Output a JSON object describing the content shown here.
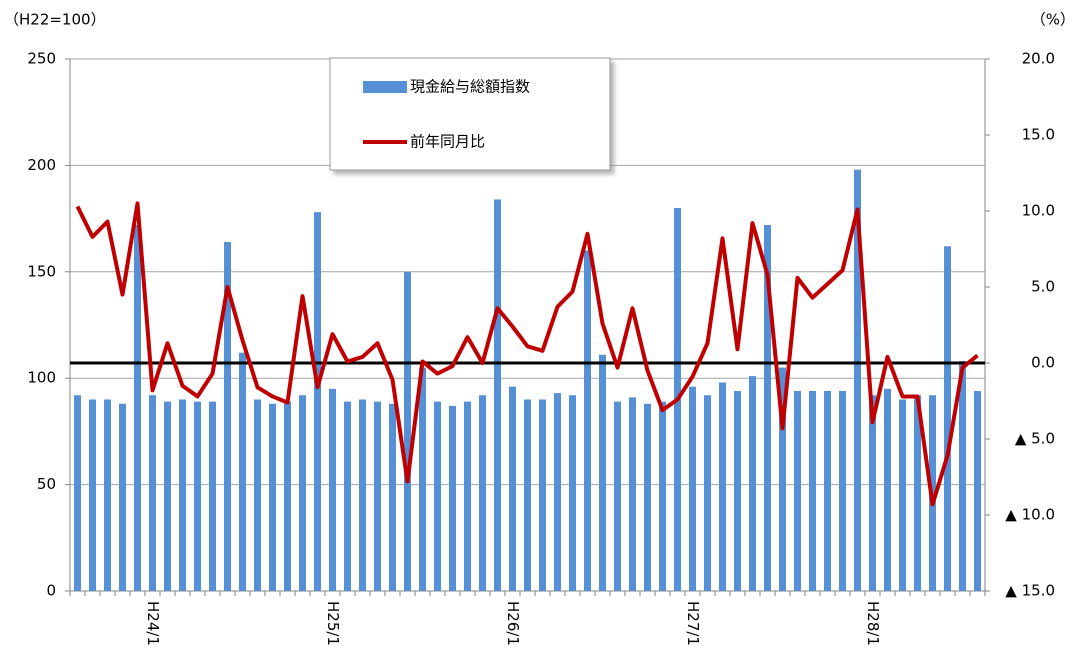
{
  "chart_data": {
    "type": "bar_line",
    "left_unit": "（H22=100）",
    "right_unit": "（%）",
    "categories": [
      null,
      null,
      null,
      null,
      null,
      "H24/1",
      null,
      null,
      null,
      null,
      null,
      null,
      null,
      null,
      null,
      null,
      null,
      "H25/1",
      null,
      null,
      null,
      null,
      null,
      null,
      null,
      null,
      null,
      null,
      null,
      "H26/1",
      null,
      null,
      null,
      null,
      null,
      null,
      null,
      null,
      null,
      null,
      null,
      "H27/1",
      null,
      null,
      null,
      null,
      null,
      null,
      null,
      null,
      null,
      null,
      null,
      "H28/1",
      null,
      null,
      null,
      null,
      null,
      null,
      null
    ],
    "series": [
      {
        "name": "現金給与総額指数",
        "type": "bar",
        "color": "#5590d6",
        "values": [
          92,
          90,
          90,
          88,
          172,
          92,
          89,
          90,
          89,
          89,
          164,
          112,
          90,
          88,
          89,
          92,
          178,
          95,
          89,
          90,
          89,
          88,
          150,
          105,
          89,
          87,
          89,
          92,
          184,
          96,
          90,
          90,
          93,
          92,
          160,
          111,
          89,
          91,
          88,
          89,
          180,
          96,
          92,
          98,
          94,
          101,
          172,
          105,
          94,
          94,
          94,
          94,
          198,
          92,
          95,
          90,
          92,
          92,
          162,
          108,
          94
        ]
      },
      {
        "name": "前年同月比",
        "type": "line",
        "axis": "y2",
        "color": "#c00000",
        "values": [
          10.3,
          8.3,
          9.3,
          4.5,
          10.5,
          -1.8,
          1.3,
          -1.5,
          -2.2,
          -0.7,
          5.0,
          1.5,
          -1.6,
          -2.2,
          -2.6,
          4.4,
          -1.6,
          1.9,
          0.1,
          0.4,
          1.3,
          -1.1,
          -7.8,
          0.1,
          -0.7,
          -0.2,
          1.7,
          0.0,
          3.6,
          2.4,
          1.1,
          0.8,
          3.7,
          4.7,
          8.5,
          2.6,
          -0.3,
          3.6,
          -0.5,
          -3.1,
          -2.4,
          -0.9,
          1.3,
          8.2,
          0.9,
          9.2,
          5.8,
          -4.3,
          5.6,
          4.3,
          5.2,
          6.1,
          10.1,
          -3.9,
          0.4,
          -2.2,
          -2.2,
          -9.3,
          -6.1,
          -0.3,
          0.5
        ]
      }
    ],
    "ylim": [
      0,
      250
    ],
    "yticks": [
      0,
      50,
      100,
      150,
      200,
      250
    ],
    "y2lim": [
      -15,
      20
    ],
    "y2ticks": [
      {
        "value": -15,
        "label": "▲ 15.0"
      },
      {
        "value": -10,
        "label": "▲ 10.0"
      },
      {
        "value": -5,
        "label": "▲ 5.0"
      },
      {
        "value": 0,
        "label": "0.0"
      },
      {
        "value": 5,
        "label": "5.0"
      },
      {
        "value": 10,
        "label": "10.0"
      },
      {
        "value": 15,
        "label": "15.0"
      },
      {
        "value": 20,
        "label": "20.0"
      }
    ],
    "grid": true,
    "reference_lines": [
      {
        "axis": "y2",
        "value": 0,
        "color": "#000000"
      }
    ],
    "legend": "top"
  }
}
